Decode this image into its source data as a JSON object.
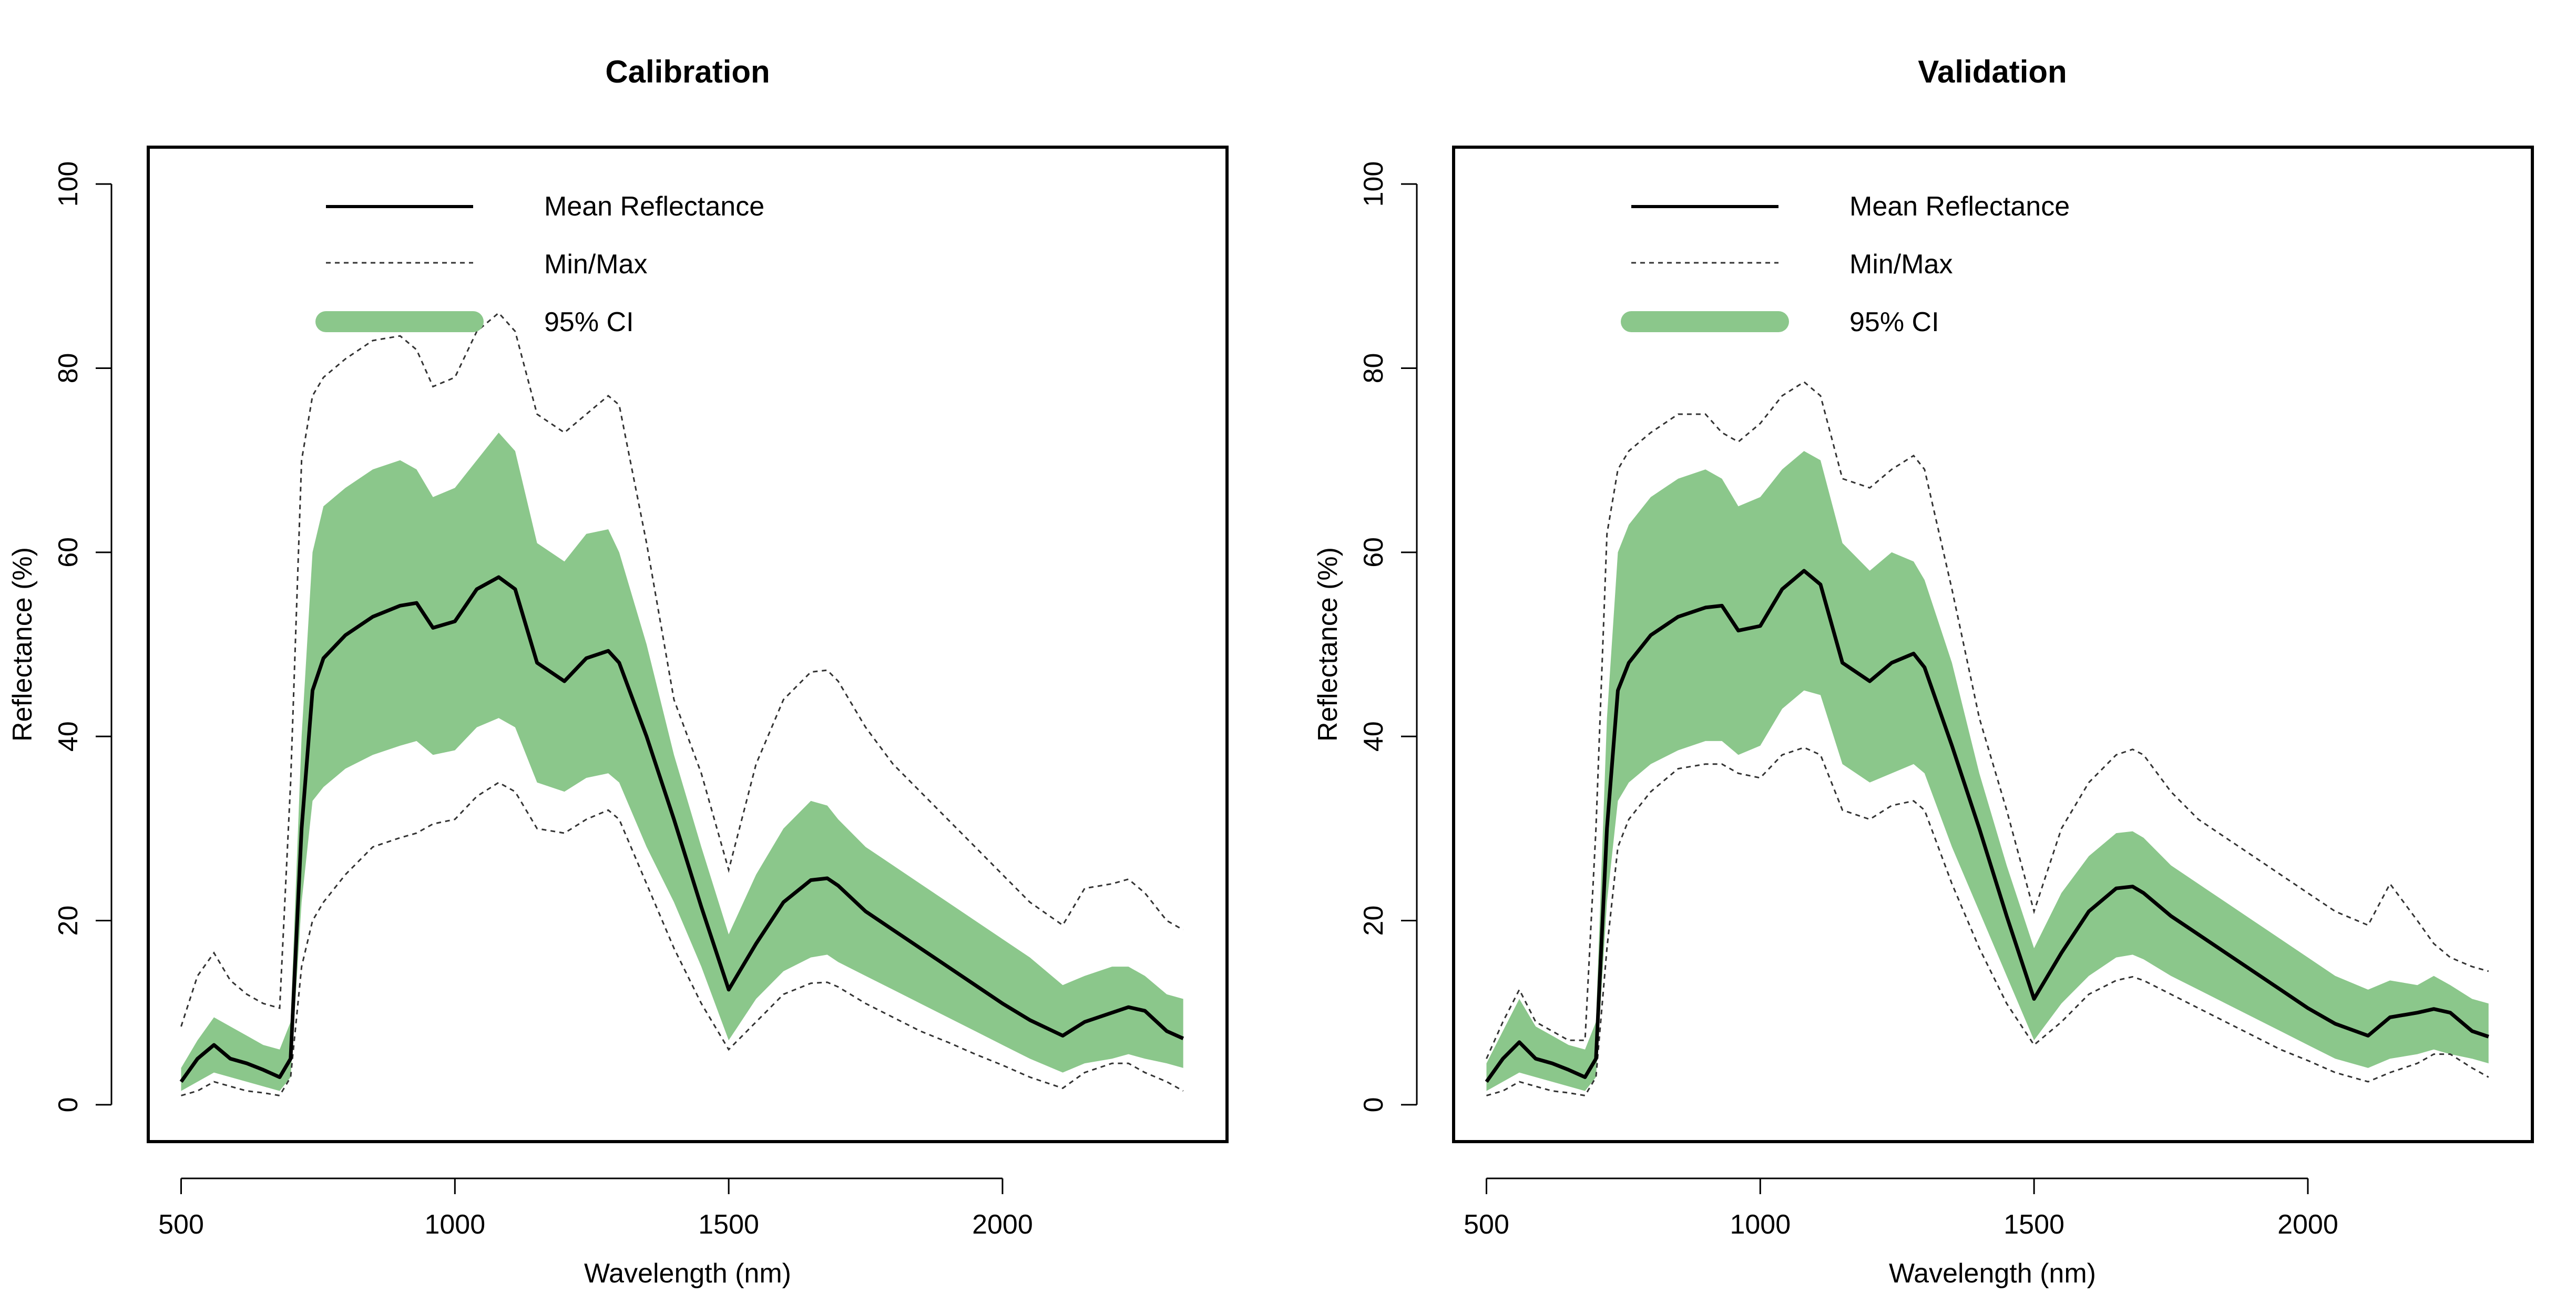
{
  "colors": {
    "ci_fill": "#8bc78b",
    "mean_line": "#000000",
    "minmax_line": "#333333",
    "axis": "#000000"
  },
  "legend": {
    "mean": "Mean Reflectance",
    "minmax": "Min/Max",
    "ci": "95% CI"
  },
  "chart_data": [
    {
      "type": "line",
      "title": "Calibration",
      "xlabel": "Wavelength (nm)",
      "ylabel": "Reflectance (%)",
      "xlim": [
        440,
        2410
      ],
      "ylim": [
        -4,
        104
      ],
      "xticks": [
        500,
        1000,
        1500,
        2000
      ],
      "yticks": [
        0,
        20,
        40,
        60,
        80,
        100
      ],
      "legend_position": "top-left",
      "grid": false,
      "x": [
        500,
        530,
        560,
        590,
        620,
        650,
        680,
        700,
        720,
        740,
        760,
        800,
        850,
        900,
        930,
        960,
        1000,
        1040,
        1080,
        1110,
        1150,
        1200,
        1240,
        1280,
        1300,
        1350,
        1400,
        1450,
        1500,
        1550,
        1600,
        1650,
        1680,
        1700,
        1750,
        1800,
        1850,
        1900,
        1950,
        2000,
        2050,
        2110,
        2150,
        2200,
        2230,
        2260,
        2300,
        2330
      ],
      "series": [
        {
          "name": "Mean Reflectance",
          "values": [
            2.5,
            5.0,
            6.5,
            5.0,
            4.5,
            3.8,
            3.0,
            5.0,
            30.0,
            45.0,
            48.5,
            51.0,
            53.0,
            54.2,
            54.5,
            51.8,
            52.5,
            56.0,
            57.3,
            56.0,
            48.0,
            46.0,
            48.5,
            49.3,
            48.0,
            40.0,
            31.0,
            21.5,
            12.5,
            17.5,
            22.0,
            24.4,
            24.6,
            23.8,
            21.0,
            19.0,
            17.0,
            15.0,
            13.0,
            11.0,
            9.2,
            7.5,
            9.0,
            10.0,
            10.6,
            10.2,
            8.0,
            7.2
          ]
        },
        {
          "name": "95% CI upper",
          "values": [
            4.0,
            7.0,
            9.5,
            8.5,
            7.5,
            6.5,
            6.0,
            9.0,
            40.0,
            60.0,
            65.0,
            67.0,
            69.0,
            70.0,
            69.0,
            66.0,
            67.0,
            70.0,
            73.0,
            71.0,
            61.0,
            59.0,
            62.0,
            62.5,
            60.0,
            50.0,
            38.0,
            28.0,
            18.5,
            25.0,
            30.0,
            33.0,
            32.5,
            31.0,
            28.0,
            26.0,
            24.0,
            22.0,
            20.0,
            18.0,
            16.0,
            13.0,
            14.0,
            15.0,
            15.0,
            14.0,
            12.0,
            11.5
          ]
        },
        {
          "name": "95% CI lower",
          "values": [
            1.5,
            2.5,
            3.5,
            3.0,
            2.5,
            2.0,
            1.5,
            3.0,
            22.0,
            33.0,
            34.5,
            36.5,
            38.0,
            39.0,
            39.5,
            38.0,
            38.5,
            41.0,
            42.0,
            41.0,
            35.0,
            34.0,
            35.5,
            36.0,
            35.0,
            28.0,
            22.0,
            15.0,
            7.0,
            11.5,
            14.5,
            16.0,
            16.3,
            15.5,
            14.0,
            12.5,
            11.0,
            9.5,
            8.0,
            6.5,
            5.0,
            3.5,
            4.5,
            5.0,
            5.5,
            5.0,
            4.5,
            4.0
          ]
        },
        {
          "name": "Max",
          "values": [
            8.5,
            14.0,
            16.5,
            13.5,
            12.0,
            11.0,
            10.5,
            35.0,
            70.0,
            77.0,
            79.0,
            81.0,
            83.0,
            83.5,
            82.0,
            78.0,
            79.0,
            84.0,
            86.0,
            84.0,
            75.0,
            73.0,
            75.0,
            77.0,
            76.0,
            61.0,
            44.0,
            36.0,
            25.5,
            37.0,
            44.0,
            47.0,
            47.2,
            46.0,
            41.0,
            37.0,
            34.0,
            31.0,
            28.0,
            25.0,
            22.0,
            19.5,
            23.5,
            24.0,
            24.5,
            23.0,
            20.0,
            19.0
          ]
        },
        {
          "name": "Min",
          "values": [
            1.0,
            1.5,
            2.5,
            2.0,
            1.5,
            1.3,
            1.0,
            3.0,
            15.0,
            20.0,
            22.0,
            25.0,
            28.0,
            29.0,
            29.5,
            30.5,
            31.0,
            33.5,
            35.0,
            34.0,
            30.0,
            29.5,
            31.0,
            32.0,
            31.0,
            24.0,
            17.0,
            11.0,
            6.0,
            9.0,
            12.0,
            13.2,
            13.3,
            12.8,
            11.0,
            9.5,
            8.0,
            6.8,
            5.5,
            4.3,
            3.0,
            1.8,
            3.5,
            4.5,
            4.5,
            3.5,
            2.5,
            1.5
          ]
        }
      ]
    },
    {
      "type": "line",
      "title": "Validation",
      "xlabel": "Wavelength (nm)",
      "ylabel": "Reflectance (%)",
      "xlim": [
        440,
        2410
      ],
      "ylim": [
        -4,
        104
      ],
      "xticks": [
        500,
        1000,
        1500,
        2000
      ],
      "yticks": [
        0,
        20,
        40,
        60,
        80,
        100
      ],
      "legend_position": "top-left",
      "grid": false,
      "x": [
        500,
        530,
        560,
        590,
        620,
        650,
        680,
        700,
        720,
        740,
        760,
        800,
        850,
        900,
        930,
        960,
        1000,
        1040,
        1080,
        1110,
        1150,
        1200,
        1240,
        1280,
        1300,
        1350,
        1400,
        1450,
        1500,
        1550,
        1600,
        1650,
        1680,
        1700,
        1750,
        1800,
        1850,
        1900,
        1950,
        2000,
        2050,
        2110,
        2150,
        2200,
        2230,
        2260,
        2300,
        2330
      ],
      "series": [
        {
          "name": "Mean Reflectance",
          "values": [
            2.5,
            5.0,
            6.8,
            5.0,
            4.5,
            3.8,
            3.0,
            5.0,
            30.0,
            45.0,
            48.0,
            51.0,
            53.0,
            54.0,
            54.2,
            51.5,
            52.0,
            56.0,
            58.0,
            56.5,
            48.0,
            46.0,
            48.0,
            49.0,
            47.5,
            39.0,
            30.0,
            20.5,
            11.5,
            16.5,
            21.0,
            23.5,
            23.7,
            23.0,
            20.5,
            18.5,
            16.5,
            14.5,
            12.5,
            10.5,
            8.8,
            7.5,
            9.5,
            10.0,
            10.4,
            10.0,
            8.0,
            7.4
          ]
        },
        {
          "name": "95% CI upper",
          "values": [
            4.5,
            8.0,
            11.5,
            8.5,
            7.5,
            6.5,
            6.0,
            9.0,
            42.0,
            60.0,
            63.0,
            66.0,
            68.0,
            69.0,
            68.0,
            65.0,
            66.0,
            69.0,
            71.0,
            70.0,
            61.0,
            58.0,
            60.0,
            59.0,
            57.0,
            48.0,
            36.0,
            26.0,
            17.0,
            23.0,
            27.0,
            29.5,
            29.7,
            29.0,
            26.0,
            24.0,
            22.0,
            20.0,
            18.0,
            16.0,
            14.0,
            12.5,
            13.5,
            13.0,
            14.0,
            13.0,
            11.5,
            11.0
          ]
        },
        {
          "name": "95% CI lower",
          "values": [
            1.5,
            2.5,
            3.5,
            3.0,
            2.5,
            2.0,
            1.5,
            3.0,
            22.0,
            33.0,
            35.0,
            37.0,
            38.5,
            39.5,
            39.5,
            38.0,
            39.0,
            43.0,
            45.0,
            44.5,
            37.0,
            35.0,
            36.0,
            37.0,
            36.0,
            28.0,
            21.0,
            14.0,
            7.0,
            11.0,
            14.0,
            16.0,
            16.3,
            15.8,
            14.0,
            12.5,
            11.0,
            9.5,
            8.0,
            6.5,
            5.0,
            4.0,
            5.0,
            5.5,
            6.0,
            5.5,
            5.0,
            4.5
          ]
        },
        {
          "name": "Max",
          "values": [
            5.0,
            9.0,
            12.5,
            9.0,
            8.0,
            7.0,
            7.0,
            30.0,
            62.0,
            69.0,
            71.0,
            73.0,
            75.0,
            75.0,
            73.0,
            72.0,
            74.0,
            77.0,
            78.5,
            77.0,
            68.0,
            67.0,
            69.0,
            70.5,
            69.0,
            56.0,
            42.0,
            32.0,
            21.0,
            30.0,
            35.0,
            38.0,
            38.6,
            38.0,
            34.0,
            31.0,
            29.0,
            27.0,
            25.0,
            23.0,
            21.0,
            19.5,
            24.0,
            20.0,
            17.5,
            16.0,
            15.0,
            14.5
          ]
        },
        {
          "name": "Min",
          "values": [
            1.0,
            1.5,
            2.5,
            2.0,
            1.5,
            1.3,
            1.0,
            3.0,
            17.0,
            28.0,
            31.0,
            34.0,
            36.5,
            37.0,
            37.0,
            36.0,
            35.5,
            38.0,
            38.8,
            38.0,
            32.0,
            31.0,
            32.5,
            33.0,
            32.0,
            24.0,
            17.0,
            11.0,
            6.5,
            9.0,
            12.0,
            13.5,
            13.9,
            13.5,
            12.0,
            10.5,
            9.0,
            7.5,
            6.0,
            4.8,
            3.5,
            2.5,
            3.5,
            4.5,
            5.5,
            5.5,
            4.0,
            3.0
          ]
        }
      ]
    }
  ]
}
